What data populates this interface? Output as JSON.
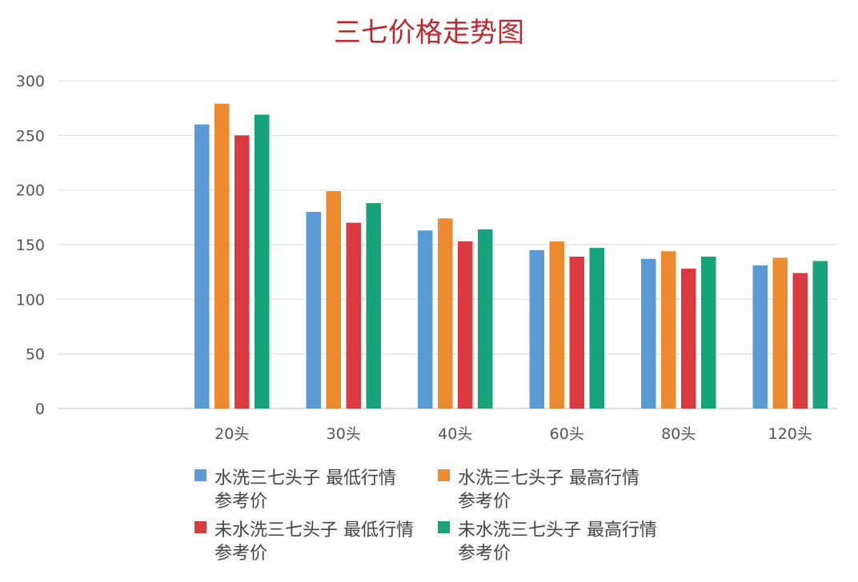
{
  "chart_data": {
    "type": "bar",
    "title": "三七价格走势图",
    "title_color": "#c0262b",
    "categories": [
      "20头",
      "30头",
      "40头",
      "60头",
      "80头",
      "120头"
    ],
    "series": [
      {
        "name": "水洗三七头子 最低行情参考价",
        "legend_lines": [
          "水洗三七头子 最低行情",
          "参考价"
        ],
        "color": "#5b9bd5",
        "values": [
          260,
          180,
          163,
          145,
          137,
          131
        ]
      },
      {
        "name": "水洗三七头子 最高行情参考价",
        "legend_lines": [
          "水洗三七头子 最高行情",
          "参考价"
        ],
        "color": "#ed8a2f",
        "values": [
          279,
          199,
          174,
          153,
          144,
          138
        ]
      },
      {
        "name": "未水洗三七头子 最低行情参考价",
        "legend_lines": [
          "未水洗三七头子 最低行情",
          "参考价"
        ],
        "color": "#d9393f",
        "values": [
          250,
          170,
          153,
          139,
          128,
          124
        ]
      },
      {
        "name": "未水洗三七头子 最高行情参考价",
        "legend_lines": [
          "未水洗三七头子 最高行情",
          "参考价"
        ],
        "color": "#17a37a",
        "values": [
          269,
          188,
          164,
          147,
          139,
          135
        ]
      }
    ],
    "ylim": [
      0,
      300
    ],
    "yticks": [
      0,
      50,
      100,
      150,
      200,
      250,
      300
    ],
    "grid": true,
    "legend_position": "bottom"
  }
}
